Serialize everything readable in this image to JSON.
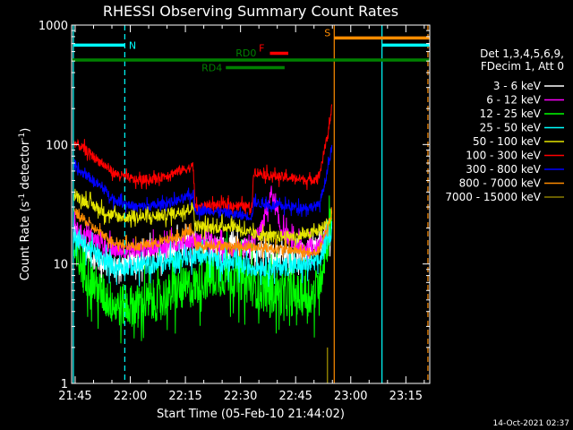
{
  "chart_data": {
    "type": "line",
    "title": "RHESSI Observing Summary Count Rates",
    "xlabel": "Start Time (05-Feb-10 21:44:02)",
    "ylabel_main": "Count Rate (s",
    "ylabel_sup1": "-1",
    "ylabel_mid": " detector",
    "ylabel_sup2": "-1",
    "ylabel_end": ")",
    "yscale": "log",
    "ylim": [
      1,
      1000
    ],
    "xlim": [
      "21:44:02",
      "23:21:30"
    ],
    "x_tick_labels": [
      "21:45",
      "22:00",
      "22:15",
      "22:30",
      "22:45",
      "23:00",
      "23:15"
    ],
    "y_tick_labels": [
      "1",
      "10",
      "100",
      "1000"
    ],
    "footer_date": "14-Oct-2021 02:37",
    "legend": {
      "placement": "right",
      "header": [
        "Det 1,3,4,5,6,9,",
        "FDecim 1, Att 0"
      ],
      "entries": [
        {
          "label": "3 - 6 keV",
          "color": "#ffffff"
        },
        {
          "label": "6 - 12 keV",
          "color": "#ff00ff"
        },
        {
          "label": "12 - 25 keV",
          "color": "#00ff00"
        },
        {
          "label": "25 - 50 keV",
          "color": "#00ffff"
        },
        {
          "label": "50 - 100 keV",
          "color": "#e5e500"
        },
        {
          "label": "100 - 300 keV",
          "color": "#ff0000"
        },
        {
          "label": "300 - 800 keV",
          "color": "#0000ff"
        },
        {
          "label": "800 - 7000 keV",
          "color": "#ff8c00"
        },
        {
          "label": "7000 - 15000 keV",
          "color": "#8b7d00"
        }
      ]
    },
    "flags": [
      {
        "label": "N",
        "color": "#00ffff",
        "start": "21:44:30",
        "end": "21:58:30",
        "y": 680
      },
      {
        "label": "",
        "color": "#00ffff",
        "start": "23:08:30",
        "end": "23:21:30",
        "y": 680
      },
      {
        "label": "S",
        "color": "#ff8c00",
        "start": "22:55:30",
        "end": "23:21:30",
        "y": 780
      },
      {
        "label": "F",
        "color": "#ff0000",
        "start": "22:38:00",
        "end": "22:43:00",
        "y": 580
      },
      {
        "label": "RD0",
        "color": "#008000",
        "start": "21:44:02",
        "end": "23:21:30",
        "y": 510
      },
      {
        "label": "RD4",
        "color": "#008000",
        "start": "22:26:00",
        "end": "22:42:00",
        "y": 440
      }
    ],
    "vlines": [
      {
        "time": "21:44:30",
        "color": "#00ffff",
        "style": "solid"
      },
      {
        "time": "21:58:30",
        "color": "#00ffff",
        "style": "dashed"
      },
      {
        "time": "22:55:30",
        "color": "#ff8c00",
        "style": "solid"
      },
      {
        "time": "23:08:30",
        "color": "#00ffff",
        "style": "solid"
      },
      {
        "time": "23:21:00",
        "color": "#ff8c00",
        "style": "dashed"
      }
    ],
    "t_start": "21:44:30",
    "t_end": "22:54:50",
    "series": [
      {
        "name": "3 - 6 keV",
        "color": "#ffffff",
        "noise": 0.1,
        "values": [
          [
            0,
            20
          ],
          [
            5,
            15
          ],
          [
            15,
            11
          ],
          [
            30,
            9.5
          ],
          [
            45,
            10.5
          ],
          [
            60,
            12
          ],
          [
            75,
            13.5
          ],
          [
            86,
            15
          ],
          [
            90,
            14.5
          ],
          [
            100,
            13.5
          ],
          [
            115,
            14
          ],
          [
            130,
            13
          ],
          [
            140,
            12
          ],
          [
            160,
            11.5
          ],
          [
            170,
            13
          ],
          [
            175,
            14
          ],
          [
            185,
            20
          ]
        ]
      },
      {
        "name": "6 - 12 keV",
        "color": "#ff00ff",
        "noise": 0.07,
        "values": [
          [
            0,
            20
          ],
          [
            10,
            17
          ],
          [
            20,
            15
          ],
          [
            30,
            13
          ],
          [
            45,
            13
          ],
          [
            60,
            14
          ],
          [
            75,
            15
          ],
          [
            86,
            16
          ],
          [
            100,
            14.5
          ],
          [
            115,
            13
          ],
          [
            125,
            13.5
          ],
          [
            135,
            20
          ],
          [
            142,
            40
          ],
          [
            148,
            20
          ],
          [
            160,
            14
          ],
          [
            170,
            13.5
          ],
          [
            175,
            14
          ],
          [
            183,
            20
          ],
          [
            185,
            24
          ]
        ]
      },
      {
        "name": "12 - 25 keV",
        "color": "#00ff00",
        "noise": 0.18,
        "values": [
          [
            0,
            12
          ],
          [
            8,
            9
          ],
          [
            18,
            6
          ],
          [
            30,
            4.5
          ],
          [
            45,
            4.5
          ],
          [
            60,
            5
          ],
          [
            75,
            6
          ],
          [
            86,
            6.5
          ],
          [
            100,
            8
          ],
          [
            115,
            8
          ],
          [
            125,
            7
          ],
          [
            135,
            6
          ],
          [
            150,
            5.5
          ],
          [
            165,
            5.5
          ],
          [
            172,
            5.5
          ],
          [
            176,
            7
          ],
          [
            185,
            24
          ]
        ]
      },
      {
        "name": "25 - 50 keV",
        "color": "#00ffff",
        "noise": 0.08,
        "values": [
          [
            0,
            17
          ],
          [
            10,
            14
          ],
          [
            20,
            11
          ],
          [
            30,
            9.5
          ],
          [
            45,
            9.5
          ],
          [
            60,
            10
          ],
          [
            75,
            11
          ],
          [
            86,
            12
          ],
          [
            100,
            11
          ],
          [
            115,
            10
          ],
          [
            125,
            9.5
          ],
          [
            140,
            9.5
          ],
          [
            160,
            9.5
          ],
          [
            170,
            10
          ],
          [
            176,
            10.5
          ],
          [
            185,
            20
          ]
        ]
      },
      {
        "name": "50 - 100 keV",
        "color": "#e5e500",
        "noise": 0.05,
        "values": [
          [
            0,
            38
          ],
          [
            10,
            33
          ],
          [
            20,
            28
          ],
          [
            30,
            25
          ],
          [
            45,
            24.5
          ],
          [
            60,
            25
          ],
          [
            75,
            27
          ],
          [
            86,
            30
          ],
          [
            87,
            21
          ],
          [
            100,
            20
          ],
          [
            115,
            21
          ],
          [
            125,
            18
          ],
          [
            140,
            17
          ],
          [
            160,
            17
          ],
          [
            170,
            18
          ],
          [
            176,
            19
          ],
          [
            185,
            24
          ]
        ]
      },
      {
        "name": "100 - 300 keV",
        "color": "#ff0000",
        "noise": 0.04,
        "values": [
          [
            0,
            105
          ],
          [
            10,
            88
          ],
          [
            20,
            70
          ],
          [
            30,
            57
          ],
          [
            45,
            50
          ],
          [
            60,
            52
          ],
          [
            75,
            60
          ],
          [
            86,
            65
          ],
          [
            87,
            30
          ],
          [
            100,
            31
          ],
          [
            115,
            31
          ],
          [
            128,
            30
          ],
          [
            129,
            60
          ],
          [
            140,
            55
          ],
          [
            160,
            52
          ],
          [
            170,
            50
          ],
          [
            176,
            55
          ],
          [
            182,
            120
          ],
          [
            185,
            200
          ]
        ]
      },
      {
        "name": "300 - 800 keV",
        "color": "#0000ff",
        "noise": 0.04,
        "values": [
          [
            0,
            63
          ],
          [
            10,
            55
          ],
          [
            20,
            44
          ],
          [
            30,
            34
          ],
          [
            45,
            30
          ],
          [
            60,
            31
          ],
          [
            75,
            34
          ],
          [
            86,
            38
          ],
          [
            87,
            28
          ],
          [
            100,
            28
          ],
          [
            115,
            26
          ],
          [
            128,
            25
          ],
          [
            129,
            33
          ],
          [
            140,
            31
          ],
          [
            160,
            30
          ],
          [
            170,
            30
          ],
          [
            176,
            31
          ],
          [
            182,
            60
          ],
          [
            185,
            95
          ]
        ]
      },
      {
        "name": "800 - 7000 keV",
        "color": "#ff8c00",
        "noise": 0.04,
        "values": [
          [
            0,
            28
          ],
          [
            10,
            22
          ],
          [
            20,
            18
          ],
          [
            30,
            15
          ],
          [
            45,
            14
          ],
          [
            60,
            15
          ],
          [
            75,
            17
          ],
          [
            86,
            19
          ],
          [
            87,
            14
          ],
          [
            100,
            14.5
          ],
          [
            115,
            14
          ],
          [
            125,
            14
          ],
          [
            140,
            13.5
          ],
          [
            160,
            13
          ],
          [
            170,
            12
          ],
          [
            176,
            13
          ],
          [
            182,
            20
          ],
          [
            185,
            26
          ]
        ]
      },
      {
        "name": "7000 - 15000 keV",
        "color": "#8b7d00",
        "noise": 0,
        "values": [
          [
            182,
            1.0
          ],
          [
            182,
            2.0
          ]
        ]
      }
    ]
  }
}
